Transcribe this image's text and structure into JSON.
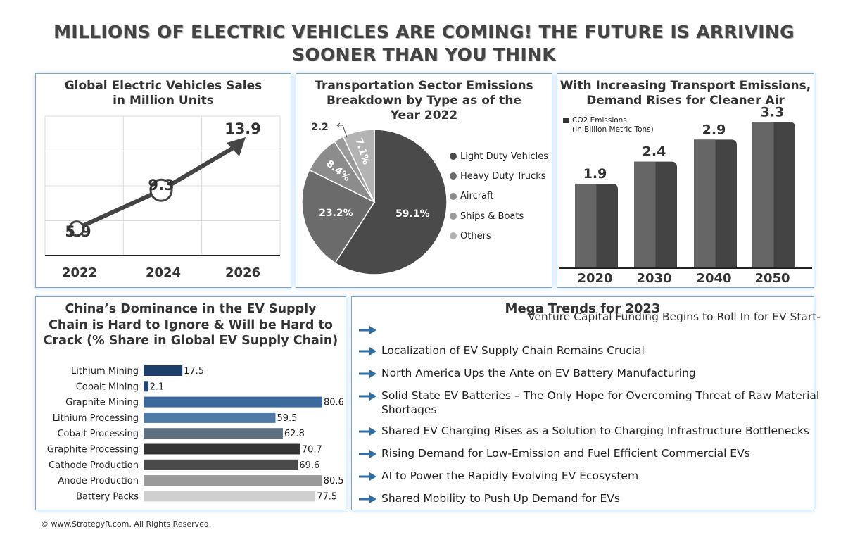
{
  "title": {
    "line1": "MILLIONS OF ELECTRIC VEHICLES ARE COMING! THE FUTURE IS ARRIVING",
    "line2": "SOONER THAN YOU THINK"
  },
  "footer": "© www.StrategyR.com. All Rights Reserved.",
  "colors": {
    "panel_border": "#7ba8cc",
    "arrow_blue": "#2e6fa8",
    "dark_gray": "#4a4a4a"
  },
  "panel_sales": {
    "title_line1": "Global Electric Vehicles Sales",
    "title_line2": "in Million Units"
  },
  "panel_emissions": {
    "title_line1": "Transportation Sector Emissions",
    "title_line2": "Breakdown by Type as of the",
    "title_line3": "Year 2022"
  },
  "panel_co2": {
    "title_line1": "With Increasing Transport Emissions,",
    "title_line2": "Demand Rises for Cleaner Air",
    "legend_line1": "CO2 Emissions",
    "legend_line2": "(In Billion Metric Tons)"
  },
  "panel_china": {
    "title_line1": "China’s Dominance in the EV Supply",
    "title_line2": "Chain is Hard to Ignore & Will be Hard to",
    "title_line3": "Crack (% Share in Global EV Supply Chain)"
  },
  "panel_trends": {
    "title": "Mega Trends for 2023",
    "overflow_text": "Venture Capital Funding Begins to Roll In for EV Start-",
    "items": [
      "",
      "Localization of EV Supply Chain Remains Crucial",
      "North America Ups the Ante on EV Battery Manufacturing",
      "Solid State EV Batteries – The Only Hope for Overcoming Threat of Raw Material Shortages",
      "Shared EV Charging Rises as a Solution to Charging Infrastructure Bottlenecks",
      "Rising Demand for Low-Emission and Fuel Efficient Commercial EVs",
      "AI to Power the Rapidly Evolving EV Ecosystem",
      "Shared Mobility to Push Up Demand for EVs"
    ]
  },
  "chart_data": [
    {
      "type": "line",
      "title": "Global Electric Vehicles Sales in Million Units",
      "categories": [
        "2022",
        "2024",
        "2026"
      ],
      "values": [
        5.9,
        9.3,
        13.9
      ],
      "labels": [
        "5.9",
        "9.3",
        "13.9"
      ],
      "grid": true
    },
    {
      "type": "pie",
      "title": "Transportation Sector Emissions Breakdown by Type as of the Year 2022",
      "labels": [
        "Light Duty Vehicles",
        "Heavy Duty Trucks",
        "Aircraft",
        "Ships & Boats",
        "Others"
      ],
      "values": [
        59.1,
        23.2,
        8.4,
        2.2,
        7.1
      ],
      "value_labels": [
        "59.1%",
        "23.2%",
        "8.4%",
        "2.2",
        "7.1%"
      ],
      "colors": [
        "#4a4a4a",
        "#6b6b6b",
        "#8c8c8c",
        "#9a9a9a",
        "#b3b3b3"
      ],
      "legend": "right"
    },
    {
      "type": "bar",
      "title": "With Increasing Transport Emissions, Demand Rises for Cleaner Air",
      "categories": [
        "2020",
        "2030",
        "2040",
        "2050"
      ],
      "values": [
        1.9,
        2.4,
        2.9,
        3.3
      ],
      "labels": [
        "1.9",
        "2.4",
        "2.9",
        "3.3"
      ],
      "legend": "top-left"
    },
    {
      "type": "bar",
      "orientation": "horizontal",
      "title": "China’s Dominance in the EV Supply Chain is Hard to Ignore & Will be Hard to Crack (% Share in Global EV Supply Chain)",
      "categories": [
        "Lithium Mining",
        "Cobalt Mining",
        "Graphite Mining",
        "Lithium Processing",
        "Cobalt Processing",
        "Graphite Processing",
        "Cathode Production",
        "Anode Production",
        "Battery Packs"
      ],
      "values": [
        17.5,
        2.1,
        80.6,
        59.5,
        62.8,
        70.7,
        69.6,
        80.5,
        77.5
      ],
      "labels": [
        "17.5",
        "2.1",
        "80.6",
        "59.5",
        "62.8",
        "70.7",
        "69.6",
        "80.5",
        "77.5"
      ],
      "colors": [
        "#1f3f6b",
        "#1f4878",
        "#3c6a9c",
        "#4f7aa6",
        "#5f7080",
        "#333333",
        "#4a4a4a",
        "#9a9a9a",
        "#cfcfcf"
      ]
    }
  ]
}
